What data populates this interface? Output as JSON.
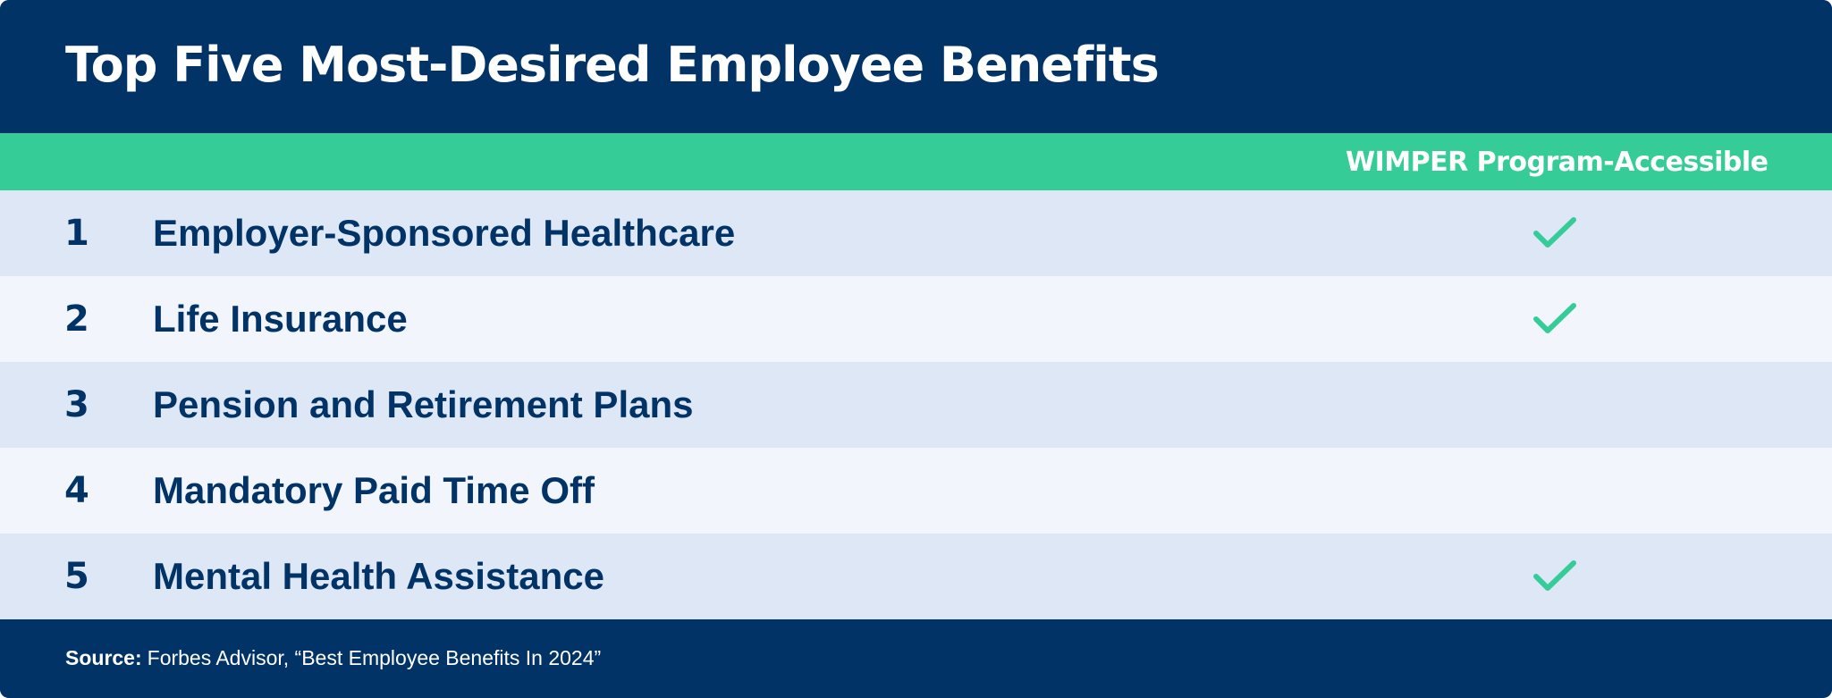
{
  "title": "Top Five Most-Desired Employee Benefits",
  "column_header": "WIMPER Program-Accessible",
  "rows": [
    {
      "rank": "1",
      "benefit": "Employer-Sponsored Healthcare",
      "wimper_accessible": true
    },
    {
      "rank": "2",
      "benefit": "Life Insurance",
      "wimper_accessible": true
    },
    {
      "rank": "3",
      "benefit": "Pension and Retirement Plans",
      "wimper_accessible": false
    },
    {
      "rank": "4",
      "benefit": "Mandatory Paid Time Off",
      "wimper_accessible": false
    },
    {
      "rank": "5",
      "benefit": "Mental Health Assistance",
      "wimper_accessible": true
    }
  ],
  "source": {
    "label": "Source:",
    "text": "Forbes Advisor, “Best Employee Benefits In 2024”"
  },
  "colors": {
    "navy": "#013366",
    "green": "#36cc98",
    "row_odd": "#dde7f6",
    "row_even": "#f2f6fc"
  },
  "icons": {
    "check": "check-icon"
  }
}
